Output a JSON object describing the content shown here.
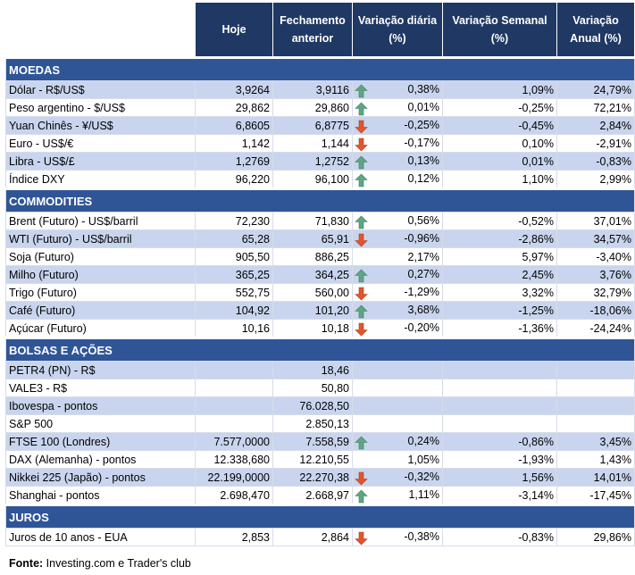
{
  "header": {
    "columns": [
      "Hoje",
      "Fechamento anterior",
      "Variação diária (%)",
      "Variação Semanal (%)",
      "Variação Anual (%)"
    ]
  },
  "sections": [
    {
      "title": "MOEDAS",
      "rows": [
        {
          "name": "Dólar - R$/US$",
          "values": [
            "3,9264",
            "3,9116",
            "0,38%",
            "1,09%",
            "24,79%"
          ],
          "arrow": "up"
        },
        {
          "name": "Peso argentino - $/US$",
          "values": [
            "29,862",
            "29,860",
            "0,01%",
            "-0,25%",
            "72,21%"
          ],
          "arrow": "up"
        },
        {
          "name": "Yuan Chinês - ¥/US$",
          "values": [
            "6,8605",
            "6,8775",
            "-0,25%",
            "-0,45%",
            "2,84%"
          ],
          "arrow": "down"
        },
        {
          "name": "Euro - US$/€",
          "values": [
            "1,142",
            "1,144",
            "-0,17%",
            "0,10%",
            "-2,91%"
          ],
          "arrow": "down"
        },
        {
          "name": "Libra - US$/£",
          "values": [
            "1,2769",
            "1,2752",
            "0,13%",
            "0,01%",
            "-0,83%"
          ],
          "arrow": "up"
        },
        {
          "name": "Índice DXY",
          "values": [
            "96,220",
            "96,100",
            "0,12%",
            "1,10%",
            "2,99%"
          ],
          "arrow": "up"
        }
      ]
    },
    {
      "title": "COMMODITIES",
      "rows": [
        {
          "name": "Brent (Futuro) - US$/barril",
          "values": [
            "72,230",
            "71,830",
            "0,56%",
            "-0,52%",
            "37,01%"
          ],
          "arrow": "up"
        },
        {
          "name": "WTI (Futuro) - US$/barril",
          "values": [
            "65,28",
            "65,91",
            "-0,96%",
            "-2,86%",
            "34,57%"
          ],
          "arrow": "down"
        },
        {
          "name": "Soja (Futuro)",
          "values": [
            "905,50",
            "886,25",
            "2,17%",
            "5,97%",
            "-3,40%"
          ],
          "arrow": null
        },
        {
          "name": "Milho (Futuro)",
          "values": [
            "365,25",
            "364,25",
            "0,27%",
            "2,45%",
            "3,76%"
          ],
          "arrow": "up"
        },
        {
          "name": "Trigo (Futuro)",
          "values": [
            "552,75",
            "560,00",
            "-1,29%",
            "3,32%",
            "32,79%"
          ],
          "arrow": "down"
        },
        {
          "name": "Café (Futuro)",
          "values": [
            "104,92",
            "101,20",
            "3,68%",
            "-1,25%",
            "-18,06%"
          ],
          "arrow": "up"
        },
        {
          "name": "Açúcar (Futuro)",
          "values": [
            "10,16",
            "10,18",
            "-0,20%",
            "-1,36%",
            "-24,24%"
          ],
          "arrow": "down"
        }
      ]
    },
    {
      "title": "BOLSAS E AÇÕES",
      "rows": [
        {
          "name": "PETR4 (PN) - R$",
          "values": [
            null,
            "18,46",
            null,
            null,
            null
          ],
          "arrow": null
        },
        {
          "name": "VALE3 - R$",
          "values": [
            null,
            "50,80",
            null,
            null,
            null
          ],
          "arrow": null
        },
        {
          "name": "Ibovespa - pontos",
          "values": [
            null,
            "76.028,50",
            null,
            null,
            null
          ],
          "arrow": null
        },
        {
          "name": "S&P 500",
          "values": [
            null,
            "2.850,13",
            null,
            null,
            null
          ],
          "arrow": null
        },
        {
          "name": "FTSE 100 (Londres)",
          "values": [
            "7.577,0000",
            "7.558,59",
            "0,24%",
            "-0,86%",
            "3,45%"
          ],
          "arrow": "up"
        },
        {
          "name": "DAX (Alemanha) - pontos",
          "values": [
            "12.338,680",
            "12.210,55",
            "1,05%",
            "-1,93%",
            "1,43%"
          ],
          "arrow": null
        },
        {
          "name": "Nikkei 225 (Japão) - pontos",
          "values": [
            "22.199,0000",
            "22.270,38",
            "-0,32%",
            "1,56%",
            "14,01%"
          ],
          "arrow": "down"
        },
        {
          "name": "Shanghai - pontos",
          "values": [
            "2.698,470",
            "2.668,97",
            "1,11%",
            "-3,14%",
            "-17,45%"
          ],
          "arrow": "up"
        }
      ]
    },
    {
      "title": "JUROS",
      "rows": [
        {
          "name": "Juros de 10 anos - EUA",
          "values": [
            "2,853",
            "2,864",
            "-0,38%",
            "-0,83%",
            "29,86%"
          ],
          "arrow": "down"
        }
      ]
    }
  ],
  "source": {
    "label": "Fonte:",
    "text": "Investing.com e Trader's club"
  }
}
